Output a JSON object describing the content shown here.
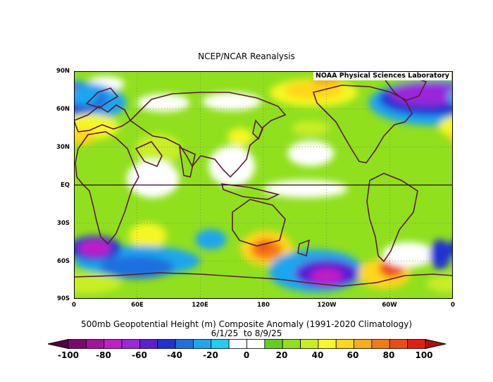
{
  "title": "NCEP/NCAR Reanalysis",
  "credit": "NOAA Physical Sciences Laboratory",
  "lat_labels": [
    "90N",
    "60N",
    "30N",
    "EQ",
    "30S",
    "60S",
    "90S"
  ],
  "lon_labels": [
    "0",
    "60E",
    "120E",
    "180",
    "120W",
    "60W",
    "0"
  ],
  "caption_line1": "500mb Geopotential Height (m) Composite Anomaly (1991-2020 Climatology)",
  "caption_line2": "6/1/25  to 8/9/25",
  "colorbar": {
    "labels": [
      "-100",
      "-80",
      "-60",
      "-40",
      "-20",
      "0",
      "20",
      "40",
      "60",
      "80",
      "100"
    ],
    "colors": [
      "#7b0a6e",
      "#a2139e",
      "#c21fc8",
      "#9a28da",
      "#5a1fd2",
      "#2232d2",
      "#1f6fe0",
      "#1ea6f0",
      "#22cdf2",
      "#ffffff",
      "#ffffff",
      "#5fd11c",
      "#90e01d",
      "#c8ee25",
      "#f6f724",
      "#fed61c",
      "#f9ad19",
      "#f47a15",
      "#ee4a13",
      "#e41d12"
    ],
    "under_color": "#520048",
    "over_color": "#ad0f0f"
  },
  "map_data": {
    "type": "heatmap",
    "projection": "equirectangular",
    "variable": "500mb geopotential height composite anomaly",
    "units": "m",
    "lon_range": [
      0,
      360
    ],
    "lat_range": [
      -90,
      90
    ],
    "background_level": 12,
    "anomaly_regions": [
      {
        "lon": 85,
        "lat": 65,
        "rx": 25,
        "ry": 7,
        "level": 9
      },
      {
        "lon": 150,
        "lat": 66,
        "rx": 28,
        "ry": 7,
        "level": 9
      },
      {
        "lon": 30,
        "lat": 80,
        "rx": 18,
        "ry": 6,
        "level": 9
      },
      {
        "lon": 228,
        "lat": 73,
        "rx": 42,
        "ry": 11,
        "level": 14
      },
      {
        "lon": 228,
        "lat": 75,
        "rx": 28,
        "ry": 7,
        "level": 15
      },
      {
        "lon": 240,
        "lat": 82,
        "rx": 14,
        "ry": 3,
        "level": 16
      },
      {
        "lon": 225,
        "lat": 45,
        "rx": 18,
        "ry": 6,
        "level": 13
      },
      {
        "lon": 345,
        "lat": 65,
        "rx": 65,
        "ry": 18,
        "level": 7
      },
      {
        "lon": 340,
        "lat": 68,
        "rx": 50,
        "ry": 13,
        "level": 5
      },
      {
        "lon": 335,
        "lat": 72,
        "rx": 35,
        "ry": 9,
        "level": 3
      },
      {
        "lon": 10,
        "lat": 70,
        "rx": 15,
        "ry": 8,
        "level": 7
      },
      {
        "lon": 15,
        "lat": 46,
        "rx": 28,
        "ry": 10,
        "level": 14
      },
      {
        "lon": 8,
        "lat": 38,
        "rx": 12,
        "ry": 6,
        "level": 15
      },
      {
        "lon": 80,
        "lat": 28,
        "rx": 22,
        "ry": 13,
        "level": 13
      },
      {
        "lon": 158,
        "lat": 38,
        "rx": 12,
        "ry": 7,
        "level": 14
      },
      {
        "lon": 150,
        "lat": 15,
        "rx": 22,
        "ry": 16,
        "level": 10
      },
      {
        "lon": 225,
        "lat": 25,
        "rx": 22,
        "ry": 10,
        "level": 10
      },
      {
        "lon": 75,
        "lat": 5,
        "rx": 25,
        "ry": 15,
        "level": 10
      },
      {
        "lon": 220,
        "lat": -3,
        "rx": 40,
        "ry": 7,
        "level": 9
      },
      {
        "lon": 70,
        "lat": -40,
        "rx": 18,
        "ry": 10,
        "level": 14
      },
      {
        "lon": 60,
        "lat": -60,
        "rx": 60,
        "ry": 12,
        "level": 7
      },
      {
        "lon": 60,
        "lat": -65,
        "rx": 35,
        "ry": 9,
        "level": 6
      },
      {
        "lon": 20,
        "lat": -50,
        "rx": 25,
        "ry": 10,
        "level": 5
      },
      {
        "lon": 20,
        "lat": -50,
        "rx": 15,
        "ry": 6,
        "level": 2
      },
      {
        "lon": 10,
        "lat": -78,
        "rx": 35,
        "ry": 8,
        "level": 13
      },
      {
        "lon": 130,
        "lat": -43,
        "rx": 15,
        "ry": 8,
        "level": 7
      },
      {
        "lon": 183,
        "lat": -50,
        "rx": 25,
        "ry": 14,
        "level": 15
      },
      {
        "lon": 183,
        "lat": -51,
        "rx": 15,
        "ry": 8,
        "level": 17
      },
      {
        "lon": 180,
        "lat": -48,
        "rx": 6,
        "ry": 4,
        "level": 18
      },
      {
        "lon": 230,
        "lat": -68,
        "rx": 45,
        "ry": 17,
        "level": 7
      },
      {
        "lon": 240,
        "lat": -70,
        "rx": 30,
        "ry": 11,
        "level": 4
      },
      {
        "lon": 240,
        "lat": -72,
        "rx": 15,
        "ry": 6,
        "level": 2
      },
      {
        "lon": 295,
        "lat": -70,
        "rx": 25,
        "ry": 12,
        "level": 15
      },
      {
        "lon": 302,
        "lat": -66,
        "rx": 12,
        "ry": 7,
        "level": 18
      },
      {
        "lon": 318,
        "lat": -55,
        "rx": 25,
        "ry": 10,
        "level": 10
      },
      {
        "lon": 348,
        "lat": -55,
        "rx": 10,
        "ry": 12,
        "level": 5
      }
    ]
  }
}
